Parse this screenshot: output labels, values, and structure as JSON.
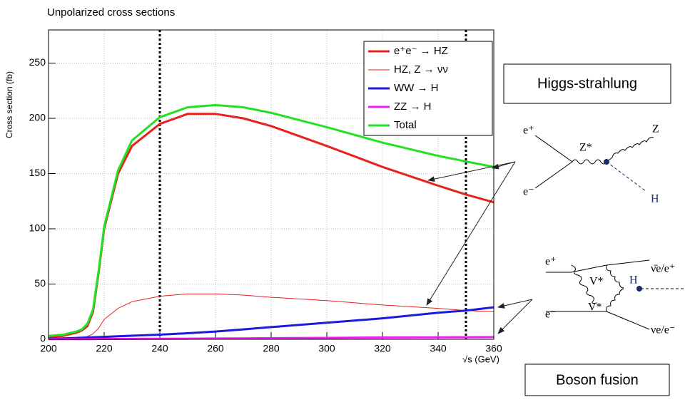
{
  "chart_data": {
    "type": "line",
    "title": "Unpolarized cross sections",
    "x_label": "√s (GeV)",
    "y_label": "Cross section (fb)",
    "x": [
      200,
      205,
      210,
      212,
      214,
      216,
      218,
      220,
      225,
      230,
      240,
      250,
      260,
      270,
      280,
      300,
      320,
      340,
      350,
      360
    ],
    "series": [
      {
        "name": "e⁺e⁻ → HZ",
        "color": "#e8201e",
        "values": [
          2,
          3,
          6,
          8,
          12,
          25,
          60,
          100,
          150,
          175,
          195,
          204,
          204,
          200,
          193,
          175,
          156,
          139,
          131,
          124
        ]
      },
      {
        "name": "HZ, Z → νν",
        "color": "#e8201e",
        "values": [
          0,
          0.3,
          1,
          1.5,
          2.5,
          5,
          10,
          18,
          28,
          34,
          39,
          41,
          41,
          40,
          38,
          35,
          31,
          28,
          26,
          25
        ]
      },
      {
        "name": "WW → H",
        "color": "#1a1ae0",
        "values": [
          0.5,
          0.8,
          1.2,
          1.4,
          1.6,
          1.8,
          2,
          2.2,
          2.7,
          3.2,
          4.2,
          5.5,
          7,
          9,
          11,
          15,
          19,
          24,
          26,
          29
        ]
      },
      {
        "name": "ZZ → H",
        "color": "#ee22ee",
        "values": [
          0.1,
          0.1,
          0.2,
          0.2,
          0.2,
          0.2,
          0.3,
          0.3,
          0.3,
          0.4,
          0.5,
          0.6,
          0.7,
          0.8,
          1,
          1.3,
          1.6,
          1.8,
          1.9,
          2
        ]
      },
      {
        "name": "Total",
        "color": "#22e022",
        "values": [
          3,
          4,
          7,
          9,
          14,
          27,
          62,
          102,
          153,
          180,
          201,
          210,
          212,
          210,
          205,
          192,
          178,
          166,
          161,
          156
        ]
      }
    ],
    "xlim": [
      200,
      360
    ],
    "xticks": [
      200,
      220,
      240,
      260,
      280,
      300,
      320,
      340,
      360
    ],
    "ylim": [
      0,
      280
    ],
    "yticks": [
      0,
      50,
      100,
      150,
      200,
      250
    ],
    "vlines": [
      240,
      350
    ],
    "grid": true,
    "legend": "upper right"
  },
  "annotations": {
    "higgs_strahlung": "Higgs-strahlung",
    "boson_fusion": "Boson fusion"
  },
  "diagrams": {
    "higgs_strahlung": {
      "labels": [
        "e⁺",
        "e⁻",
        "Z*",
        "Z",
        "H"
      ]
    },
    "boson_fusion": {
      "labels": [
        "e⁺",
        "e⁻",
        "V*",
        "V*",
        "H",
        "ν̄e/e⁺",
        "νe/e⁻"
      ]
    }
  }
}
